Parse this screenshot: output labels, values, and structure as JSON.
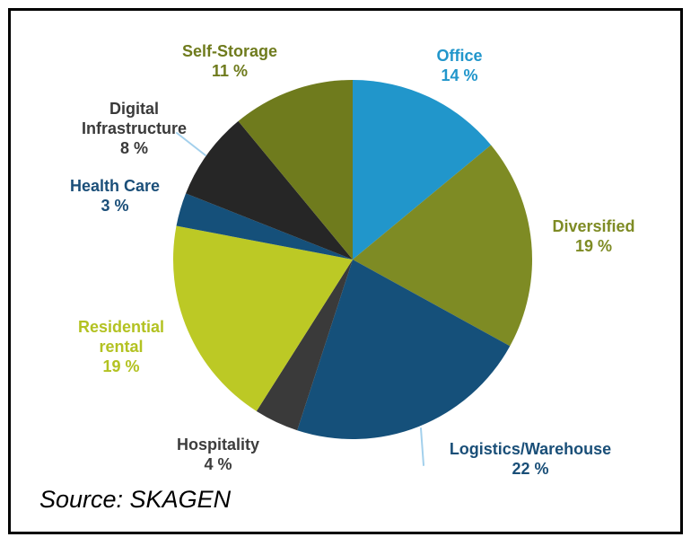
{
  "source": {
    "text": "Source: SKAGEN"
  },
  "colors": {
    "background": "#ffffff",
    "frame_border": "#000000",
    "leader_line": "#a3d0ec"
  },
  "chart_data": {
    "type": "pie",
    "title": "",
    "start_angle_deg": 0,
    "direction": "clockwise",
    "total": 100,
    "legend_position": "around-slices",
    "segments": [
      {
        "id": "office",
        "label": "Office",
        "value": 14,
        "display": "14 %",
        "color": "#2196cb",
        "label_color": "#2196cb"
      },
      {
        "id": "diversified",
        "label": "Diversified",
        "value": 19,
        "display": "19 %",
        "color": "#7e8b24",
        "label_color": "#7e8b24"
      },
      {
        "id": "logistics-warehouse",
        "label": "Logistics/Warehouse",
        "value": 22,
        "display": "22 %",
        "color": "#15507a",
        "label_color": "#1a4f78"
      },
      {
        "id": "hospitality",
        "label": "Hospitality",
        "value": 4,
        "display": "4 %",
        "color": "#3a3a3a",
        "label_color": "#3d3d3d"
      },
      {
        "id": "residential-rental",
        "label": "Residential rental",
        "value": 19,
        "display": "19 %",
        "color": "#bcc925",
        "label_color": "#b3c222"
      },
      {
        "id": "health-care",
        "label": "Health Care",
        "value": 3,
        "display": "3 %",
        "color": "#15507a",
        "label_color": "#1b4f79"
      },
      {
        "id": "digital-infrastructure",
        "label": "Digital Infrastructure",
        "value": 8,
        "display": "8 %",
        "color": "#262626",
        "label_color": "#3a3a3a"
      },
      {
        "id": "self-storage",
        "label": "Self-Storage",
        "value": 11,
        "display": "11 %",
        "color": "#6f7b1d",
        "label_color": "#6f7b1d"
      }
    ]
  }
}
